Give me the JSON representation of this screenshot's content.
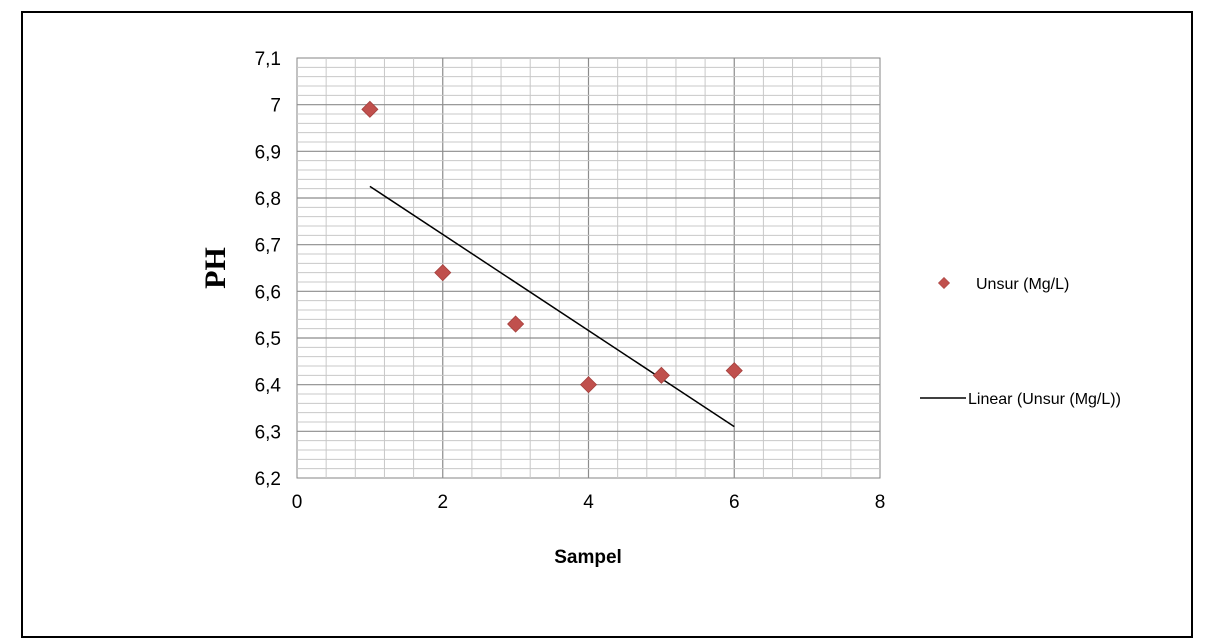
{
  "chart_data": {
    "type": "scatter",
    "xlabel": "Sampel",
    "ylabel": "PH",
    "xlim": [
      0,
      8
    ],
    "ylim": [
      6.2,
      7.1
    ],
    "x_ticks": [
      "0",
      "2",
      "4",
      "6",
      "8"
    ],
    "y_ticks": [
      "6,2",
      "6,3",
      "6,4",
      "6,5",
      "6,6",
      "6,7",
      "6,8",
      "6,9",
      "7",
      "7,1"
    ],
    "grid": true,
    "legend_position": "right",
    "series": [
      {
        "name": "Unsur (Mg/L)",
        "marker": "diamond",
        "color": "#C0504D",
        "x": [
          1,
          2,
          3,
          4,
          5,
          6
        ],
        "y": [
          6.99,
          6.64,
          6.53,
          6.4,
          6.42,
          6.43
        ]
      }
    ],
    "trendline": {
      "name": "Linear (Unsur (Mg/L))",
      "type": "linear",
      "color": "#000000",
      "x": [
        1,
        6
      ],
      "y": [
        6.825,
        6.31
      ]
    }
  }
}
